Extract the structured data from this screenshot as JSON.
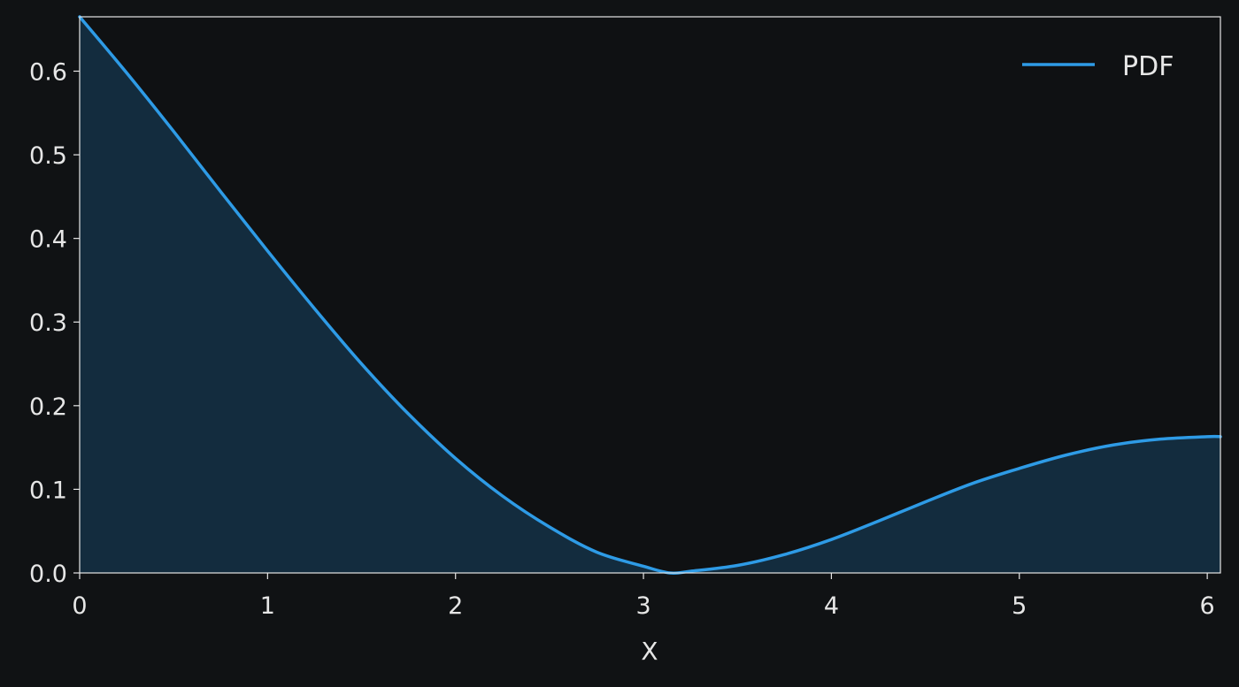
{
  "chart_data": {
    "type": "area",
    "title": "",
    "xlabel": "X",
    "ylabel": "",
    "xlim": [
      0,
      6.07
    ],
    "ylim": [
      0,
      0.665
    ],
    "xticks": [
      0,
      1,
      2,
      3,
      4,
      5,
      6
    ],
    "xtick_labels": [
      "0",
      "1",
      "2",
      "3",
      "4",
      "5",
      "6"
    ],
    "yticks": [
      0.0,
      0.1,
      0.2,
      0.3,
      0.4,
      0.5,
      0.6
    ],
    "ytick_labels": [
      "0.0",
      "0.1",
      "0.2",
      "0.3",
      "0.4",
      "0.5",
      "0.6"
    ],
    "grid": false,
    "legend": {
      "position": "top-right",
      "entries": [
        "PDF"
      ]
    },
    "series": [
      {
        "name": "PDF",
        "color": "#2e9be6",
        "fill_color": "#132c3e",
        "x": [
          0,
          0.25,
          0.5,
          0.75,
          1.0,
          1.25,
          1.5,
          1.75,
          2.0,
          2.25,
          2.5,
          2.75,
          3.0,
          3.14,
          3.25,
          3.5,
          3.75,
          4.0,
          4.25,
          4.5,
          4.75,
          5.0,
          5.25,
          5.5,
          5.75,
          6.0,
          6.07
        ],
        "y": [
          0.665,
          0.598,
          0.528,
          0.456,
          0.385,
          0.316,
          0.25,
          0.19,
          0.137,
          0.092,
          0.055,
          0.025,
          0.008,
          0.0,
          0.002,
          0.009,
          0.022,
          0.04,
          0.062,
          0.085,
          0.107,
          0.125,
          0.141,
          0.153,
          0.16,
          0.163,
          0.163
        ]
      }
    ]
  }
}
